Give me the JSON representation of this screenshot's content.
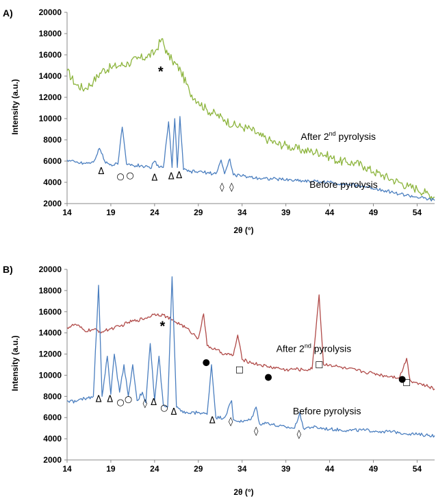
{
  "chart_data": [
    {
      "type": "line",
      "panel_label": "A)",
      "xlabel": "2θ (°)",
      "ylabel": "Intensity (a.u.)",
      "xlim": [
        14,
        56
      ],
      "ylim": [
        2000,
        20000
      ],
      "xticks": [
        "14",
        "19",
        "24",
        "29",
        "34",
        "39",
        "44",
        "49",
        "54"
      ],
      "yticks": [
        "2000",
        "4000",
        "6000",
        "8000",
        "10000",
        "12000",
        "14000",
        "16000",
        "18000",
        "20000"
      ],
      "series": [
        {
          "name": "After 2nd pyrolysis",
          "color": "#8cb43c",
          "x": [
            14,
            15,
            16,
            17,
            18,
            19,
            20,
            21,
            22,
            23,
            24,
            24.8,
            25.5,
            26,
            27,
            28,
            29,
            30,
            31,
            32,
            33,
            34,
            35,
            36,
            37,
            38,
            39,
            40,
            41,
            42,
            43,
            44,
            45,
            46,
            47,
            48,
            49,
            50,
            51,
            52,
            53,
            54,
            55,
            56
          ],
          "y": [
            14500,
            13200,
            12800,
            13500,
            14500,
            14800,
            15000,
            15200,
            15600,
            15800,
            16200,
            17500,
            16000,
            15500,
            14500,
            12500,
            11600,
            10800,
            10400,
            9900,
            9400,
            9200,
            9000,
            8400,
            8000,
            7600,
            7500,
            7200,
            7000,
            6900,
            6800,
            6400,
            6000,
            5900,
            5800,
            5500,
            5000,
            4700,
            4300,
            4000,
            3600,
            3400,
            3000,
            2600
          ]
        },
        {
          "name": "Before pyrolysis",
          "color": "#4a7ebf",
          "x": [
            14,
            15,
            16,
            17,
            17.7,
            18.4,
            19,
            19.8,
            20.3,
            20.8,
            21.5,
            22.5,
            23.5,
            24,
            24.5,
            25,
            25.6,
            26,
            26.3,
            26.6,
            26.9,
            27.3,
            28,
            29,
            30,
            31,
            31.6,
            32,
            32.6,
            33,
            34,
            36,
            38,
            40,
            42,
            44,
            46,
            48,
            50,
            52,
            54,
            56
          ],
          "y": [
            6100,
            5900,
            5800,
            5900,
            7200,
            5800,
            5700,
            5700,
            9200,
            5700,
            5600,
            5600,
            5300,
            6000,
            5400,
            5400,
            9700,
            5400,
            10000,
            5400,
            10200,
            5200,
            5000,
            5000,
            4900,
            4800,
            6100,
            4800,
            6200,
            4700,
            4600,
            4400,
            4300,
            4200,
            4100,
            4000,
            3800,
            3600,
            3300,
            2900,
            2600,
            2300
          ]
        }
      ],
      "markers": [
        {
          "symbol": "Δ",
          "x": 17.9,
          "y": 5100
        },
        {
          "symbol": "○",
          "x": 20.1,
          "y": 4600
        },
        {
          "symbol": "○",
          "x": 21.2,
          "y": 4700
        },
        {
          "symbol": "Δ",
          "x": 24.0,
          "y": 4500
        },
        {
          "symbol": "Δ",
          "x": 25.9,
          "y": 4600
        },
        {
          "symbol": "Δ",
          "x": 26.8,
          "y": 4700
        },
        {
          "symbol": "◊",
          "x": 31.7,
          "y": 3600
        },
        {
          "symbol": "◊",
          "x": 32.8,
          "y": 3600
        }
      ],
      "annotation": {
        "text": "*",
        "x": 24.7,
        "y": 14000
      },
      "series_labels": [
        {
          "text": "After 2",
          "sup": "nd",
          "rest": " pyrolysis",
          "x": 40.7,
          "y": 8000
        },
        {
          "text": "Before pyrolysis",
          "sup": "",
          "rest": "",
          "x": 41.7,
          "y": 3500
        }
      ]
    },
    {
      "type": "line",
      "panel_label": "B)",
      "xlabel": "2θ (°)",
      "ylabel": "Intensity (a.u.)",
      "xlim": [
        14,
        56
      ],
      "ylim": [
        2000,
        20000
      ],
      "xticks": [
        "14",
        "19",
        "24",
        "29",
        "34",
        "39",
        "44",
        "49",
        "54"
      ],
      "yticks": [
        "2000",
        "4000",
        "6000",
        "8000",
        "10000",
        "12000",
        "14000",
        "16000",
        "18000",
        "20000"
      ],
      "series": [
        {
          "name": "After 2nd pyrolysis",
          "color": "#b04a48",
          "x": [
            14,
            15,
            16,
            17,
            18,
            19,
            20,
            21,
            22,
            23,
            24,
            25,
            26,
            27,
            28,
            29,
            29.6,
            30,
            31,
            32,
            33,
            33.5,
            34,
            35,
            36,
            37,
            38,
            39,
            40,
            41,
            42,
            42.8,
            43.3,
            44,
            45,
            46,
            47,
            48,
            49,
            50,
            51,
            52,
            52.8,
            53.2,
            54,
            55,
            56
          ],
          "y": [
            14500,
            14800,
            14200,
            14300,
            14100,
            14400,
            14600,
            15000,
            15200,
            15400,
            15800,
            15700,
            15200,
            14800,
            14200,
            13500,
            15800,
            12800,
            12400,
            12000,
            11900,
            13800,
            11500,
            11200,
            11000,
            10800,
            10700,
            10500,
            10600,
            10500,
            10600,
            17600,
            11000,
            11000,
            10800,
            10600,
            10500,
            10300,
            10200,
            10000,
            9900,
            9800,
            11600,
            9500,
            9300,
            9000,
            8700
          ]
        },
        {
          "name": "Before pyrolysis",
          "color": "#4a7ebf",
          "x": [
            14,
            15,
            16,
            17,
            17.6,
            18,
            18.6,
            19,
            19.4,
            20,
            20.5,
            21,
            21.5,
            22,
            22.6,
            23,
            23.5,
            24,
            24.5,
            25,
            25.5,
            26,
            26.5,
            27,
            28,
            29,
            30,
            30.5,
            31,
            32,
            32.8,
            33,
            34,
            35,
            35.6,
            36,
            37,
            38,
            39,
            40,
            40.6,
            41,
            42,
            44,
            46,
            48,
            50,
            52,
            54,
            56
          ],
          "y": [
            7600,
            7500,
            7800,
            8000,
            18500,
            8000,
            11800,
            8200,
            12000,
            8400,
            11000,
            8000,
            11000,
            7600,
            8400,
            7400,
            13000,
            7600,
            11800,
            7200,
            7000,
            19300,
            7000,
            6600,
            6400,
            6500,
            6300,
            11000,
            6000,
            6000,
            7600,
            5800,
            5600,
            5800,
            7000,
            5400,
            5500,
            5200,
            5100,
            5000,
            6500,
            5000,
            5100,
            4900,
            4800,
            4800,
            4700,
            4600,
            4400,
            4300
          ]
        }
      ],
      "markers": [
        {
          "symbol": "Δ",
          "x": 17.6,
          "y": 7800
        },
        {
          "symbol": "Δ",
          "x": 18.9,
          "y": 7800
        },
        {
          "symbol": "○",
          "x": 20.1,
          "y": 7500
        },
        {
          "symbol": "○",
          "x": 21.0,
          "y": 7800
        },
        {
          "symbol": "◊",
          "x": 22.9,
          "y": 7400
        },
        {
          "symbol": "Δ",
          "x": 23.9,
          "y": 7500
        },
        {
          "symbol": "○",
          "x": 25.1,
          "y": 7000
        },
        {
          "symbol": "Δ",
          "x": 26.2,
          "y": 6600
        },
        {
          "symbol": "●",
          "x": 29.9,
          "y": 11300
        },
        {
          "symbol": "Δ",
          "x": 30.6,
          "y": 5800
        },
        {
          "symbol": "◊",
          "x": 32.7,
          "y": 5700
        },
        {
          "symbol": "□",
          "x": 33.7,
          "y": 10600
        },
        {
          "symbol": "◊",
          "x": 35.6,
          "y": 4800
        },
        {
          "symbol": "●",
          "x": 37.0,
          "y": 9900
        },
        {
          "symbol": "◊",
          "x": 40.5,
          "y": 4500
        },
        {
          "symbol": "□",
          "x": 42.8,
          "y": 11100
        },
        {
          "symbol": "●",
          "x": 52.3,
          "y": 9700
        },
        {
          "symbol": "□",
          "x": 52.8,
          "y": 9400
        }
      ],
      "annotation": {
        "text": "*",
        "x": 24.9,
        "y": 14200
      },
      "series_labels": [
        {
          "text": "After 2",
          "sup": "nd",
          "rest": " pyrolysis",
          "x": 37.9,
          "y": 12200
        },
        {
          "text": "Before pyrolysis",
          "sup": "",
          "rest": "",
          "x": 39.8,
          "y": 6300
        }
      ]
    }
  ]
}
